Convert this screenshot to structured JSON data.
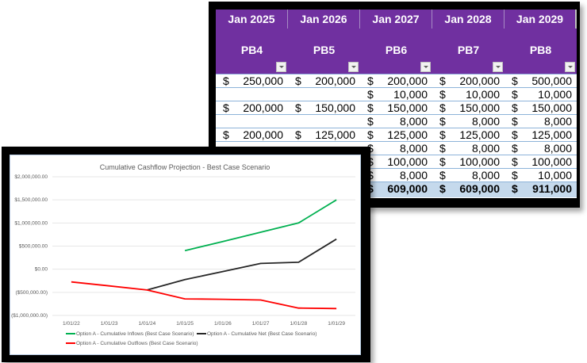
{
  "spreadsheet": {
    "month_headers": [
      "Jan 2025",
      "Jan 2026",
      "Jan 2027",
      "Jan 2028",
      "Jan 2029"
    ],
    "column_labels": [
      "PB4",
      "PB5",
      "PB6",
      "PB7",
      "PB8"
    ],
    "currency_symbol": "$",
    "rows": [
      [
        "250,000",
        "200,000",
        "200,000",
        "200,000",
        "500,000"
      ],
      [
        "",
        "",
        "10,000",
        "10,000",
        "10,000"
      ],
      [
        "200,000",
        "150,000",
        "150,000",
        "150,000",
        "150,000"
      ],
      [
        "",
        "",
        "8,000",
        "8,000",
        "8,000"
      ],
      [
        "200,000",
        "125,000",
        "125,000",
        "125,000",
        "125,000"
      ],
      [
        "",
        "",
        "8,000",
        "8,000",
        "8,000"
      ],
      [
        "",
        "",
        "100,000",
        "100,000",
        "100,000"
      ],
      [
        "",
        "",
        "8,000",
        "8,000",
        "10,000"
      ]
    ],
    "totals": [
      "",
      "",
      "609,000",
      "609,000",
      "911,000"
    ],
    "colors": {
      "header_bg": "#7030a0",
      "total_bg": "#c5d9ec",
      "row_border": "#8db3d9"
    }
  },
  "chart_data": {
    "type": "line",
    "title": "Cumulative Cashflow Projection - Best Case Scenario",
    "xlabel": "",
    "ylabel": "",
    "categories": [
      "1/01/22",
      "1/01/23",
      "1/01/24",
      "1/01/25",
      "1/01/26",
      "1/01/27",
      "1/01/28",
      "1/01/29"
    ],
    "ylim": [
      -1000000,
      2000000
    ],
    "ytick_values": [
      2000000,
      1500000,
      1000000,
      500000,
      0,
      -500000,
      -1000000
    ],
    "ytick_labels": [
      "$2,000,000.00",
      "$1,500,000.00",
      "$1,000,000.00",
      "$500,000.00",
      "$0.00",
      "($500,000.00)",
      "($1,000,000.00)"
    ],
    "grid": true,
    "legend_position": "bottom",
    "series": [
      {
        "name": "Option A - Cumulative Inflows (Best Case Scenario)",
        "color": "#00b050",
        "values": [
          null,
          null,
          null,
          400000,
          600000,
          800000,
          1000000,
          1500000
        ]
      },
      {
        "name": "Option A - Cumulative Net (Best Case Scenario)",
        "color": "#262626",
        "values": [
          null,
          null,
          -450000,
          -225000,
          -50000,
          125000,
          150000,
          650000
        ]
      },
      {
        "name": "Option A - Cumulative Outflows (Best Case Scenario)",
        "color": "#ff0000",
        "values": [
          -275000,
          -360000,
          -450000,
          -641000,
          -650000,
          -666000,
          -840000,
          -850000
        ]
      }
    ]
  }
}
